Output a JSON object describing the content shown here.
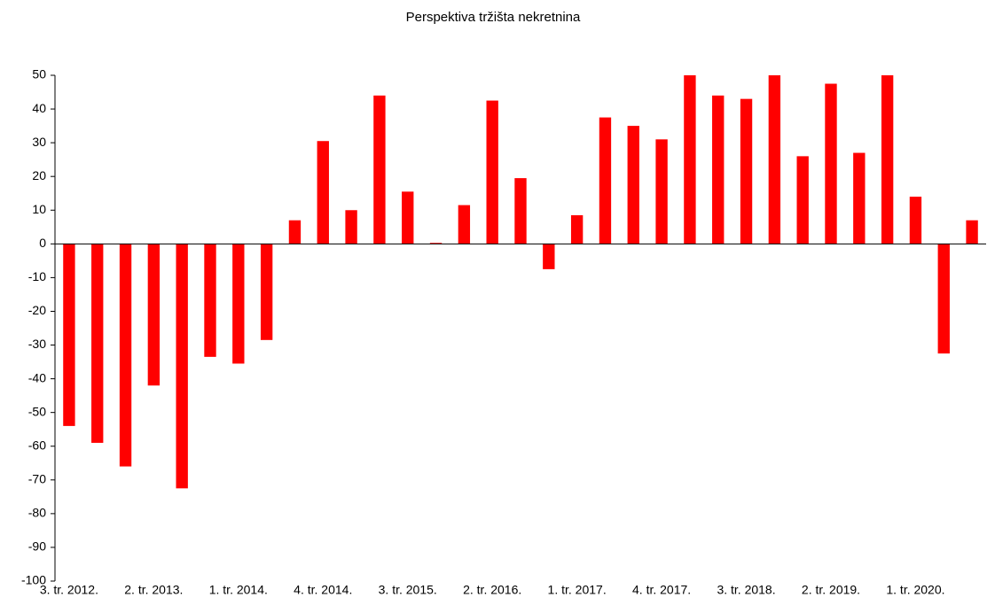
{
  "chart_data": {
    "type": "bar",
    "title": "Perspektiva tržišta nekretnina",
    "categories": [
      "3. tr. 2012.",
      null,
      null,
      "2. tr. 2013.",
      null,
      null,
      "1. tr. 2014.",
      null,
      null,
      "4. tr. 2014.",
      null,
      null,
      "3. tr. 2015.",
      null,
      null,
      "2. tr. 2016.",
      null,
      null,
      "1. tr. 2017.",
      null,
      null,
      "4. tr. 2017.",
      null,
      null,
      "3. tr. 2018.",
      null,
      null,
      "2. tr. 2019.",
      null,
      null,
      "1. tr. 2020.",
      null,
      null
    ],
    "values": [
      -54,
      -59,
      -66,
      -42,
      -72.5,
      -33.5,
      -35.5,
      -28.5,
      7,
      30.5,
      10,
      44,
      15.5,
      0.3,
      11.5,
      42.5,
      19.5,
      -7.5,
      8.5,
      37.5,
      35,
      31,
      50,
      44,
      43,
      50,
      26,
      47.5,
      27,
      50,
      14,
      -32.5,
      7
    ],
    "color": "#ff0000",
    "ylim": [
      -100,
      50
    ],
    "yticks": [
      -100,
      -90,
      -80,
      -70,
      -60,
      -50,
      -40,
      -30,
      -20,
      -10,
      0,
      10,
      20,
      30,
      40,
      50
    ],
    "grid": false
  }
}
